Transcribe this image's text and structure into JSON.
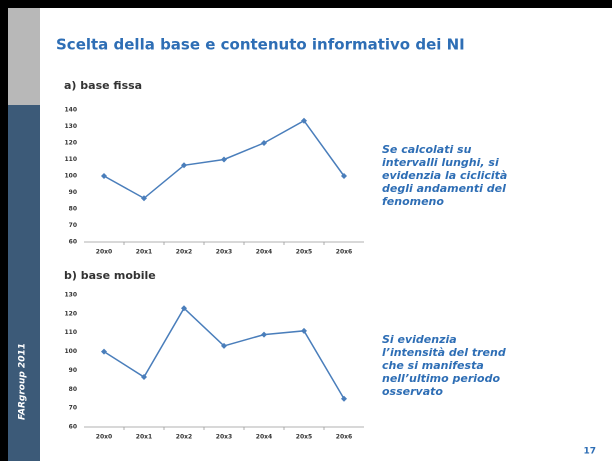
{
  "slide_title": "Scelta della base e contenuto informativo dei NI",
  "footer": "FARgroup 2011",
  "page_number": "17",
  "notes": [
    [
      "Se calcolati su",
      "intervalli lunghi, si",
      "evidenzia la ciclicità",
      "degli andamenti del",
      "fenomeno"
    ],
    [
      "Si evidenzia",
      "l’intensità del trend",
      "che si manifesta",
      "nell’ultimo periodo",
      "osservato"
    ]
  ],
  "chart_data": [
    {
      "type": "line",
      "title": "a) base fissa",
      "categories": [
        "20x0",
        "20x1",
        "20x2",
        "20x3",
        "20x4",
        "20x5",
        "20x6"
      ],
      "values": [
        100,
        86.5,
        106.5,
        110,
        120,
        133.5,
        100
      ],
      "color": "#4a7ebb",
      "ylim": [
        60,
        140
      ],
      "yticks": [
        60,
        70,
        80,
        90,
        100,
        110,
        120,
        130,
        140
      ],
      "grid": false
    },
    {
      "type": "line",
      "title": "b) base mobile",
      "categories": [
        "20x0",
        "20x1",
        "20x2",
        "20x3",
        "20x4",
        "20x5",
        "20x6"
      ],
      "values": [
        100,
        86.5,
        123,
        103,
        109,
        111,
        75
      ],
      "color": "#4a7ebb",
      "ylim": [
        60,
        130
      ],
      "yticks": [
        60,
        70,
        80,
        90,
        100,
        110,
        120,
        130
      ],
      "grid": false
    }
  ]
}
